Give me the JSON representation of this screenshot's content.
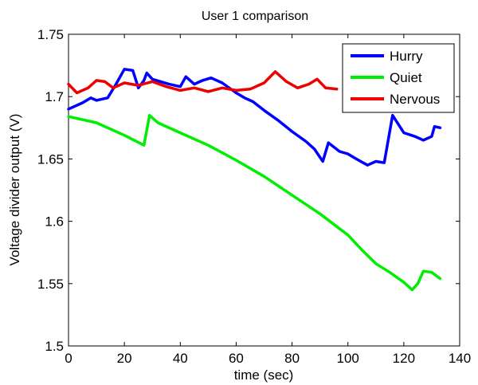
{
  "chart_data": {
    "type": "line",
    "title": "User 1 comparison",
    "xlabel": "time (sec)",
    "ylabel": "Voltage divider output (V)",
    "xlim": [
      0,
      140
    ],
    "ylim": [
      1.5,
      1.75
    ],
    "xticks": [
      0,
      20,
      40,
      60,
      80,
      100,
      120,
      140
    ],
    "yticks": [
      1.5,
      1.55,
      1.6,
      1.65,
      1.7,
      1.75
    ],
    "xtick_labels": [
      "0",
      "20",
      "40",
      "60",
      "80",
      "100",
      "120",
      "140"
    ],
    "ytick_labels": [
      "1.5",
      "1.55",
      "1.6",
      "1.65",
      "1.7",
      "1.75"
    ],
    "grid": false,
    "legend_position": "top-right",
    "series": [
      {
        "name": "Hurry",
        "color": "#0000ff",
        "points": [
          [
            0,
            1.69
          ],
          [
            5,
            1.695
          ],
          [
            8,
            1.699
          ],
          [
            10,
            1.697
          ],
          [
            14,
            1.699
          ],
          [
            17,
            1.71
          ],
          [
            20,
            1.722
          ],
          [
            23,
            1.721
          ],
          [
            25,
            1.707
          ],
          [
            27,
            1.713
          ],
          [
            28,
            1.719
          ],
          [
            30,
            1.714
          ],
          [
            33,
            1.712
          ],
          [
            36,
            1.71
          ],
          [
            40,
            1.708
          ],
          [
            42,
            1.716
          ],
          [
            45,
            1.71
          ],
          [
            48,
            1.713
          ],
          [
            51,
            1.715
          ],
          [
            55,
            1.711
          ],
          [
            60,
            1.703
          ],
          [
            63,
            1.699
          ],
          [
            66,
            1.696
          ],
          [
            70,
            1.689
          ],
          [
            75,
            1.681
          ],
          [
            80,
            1.672
          ],
          [
            85,
            1.664
          ],
          [
            88,
            1.658
          ],
          [
            91,
            1.648
          ],
          [
            93,
            1.663
          ],
          [
            97,
            1.656
          ],
          [
            100,
            1.654
          ],
          [
            103,
            1.65
          ],
          [
            107,
            1.645
          ],
          [
            110,
            1.648
          ],
          [
            113,
            1.647
          ],
          [
            116,
            1.685
          ],
          [
            118,
            1.678
          ],
          [
            120,
            1.671
          ],
          [
            124,
            1.668
          ],
          [
            127,
            1.665
          ],
          [
            130,
            1.668
          ],
          [
            131,
            1.676
          ],
          [
            133,
            1.675
          ]
        ]
      },
      {
        "name": "Quiet",
        "color": "#00ee00",
        "points": [
          [
            0,
            1.684
          ],
          [
            10,
            1.679
          ],
          [
            20,
            1.669
          ],
          [
            27,
            1.661
          ],
          [
            29,
            1.685
          ],
          [
            32,
            1.679
          ],
          [
            40,
            1.671
          ],
          [
            50,
            1.661
          ],
          [
            60,
            1.649
          ],
          [
            70,
            1.636
          ],
          [
            80,
            1.621
          ],
          [
            90,
            1.606
          ],
          [
            100,
            1.589
          ],
          [
            105,
            1.577
          ],
          [
            110,
            1.566
          ],
          [
            115,
            1.559
          ],
          [
            120,
            1.551
          ],
          [
            123,
            1.545
          ],
          [
            125,
            1.55
          ],
          [
            127,
            1.56
          ],
          [
            130,
            1.559
          ],
          [
            133,
            1.554
          ]
        ]
      },
      {
        "name": "Nervous",
        "color": "#ee0000",
        "points": [
          [
            0,
            1.71
          ],
          [
            3,
            1.703
          ],
          [
            7,
            1.707
          ],
          [
            10,
            1.713
          ],
          [
            13,
            1.712
          ],
          [
            16,
            1.707
          ],
          [
            20,
            1.711
          ],
          [
            25,
            1.709
          ],
          [
            30,
            1.712
          ],
          [
            35,
            1.708
          ],
          [
            40,
            1.705
          ],
          [
            45,
            1.707
          ],
          [
            50,
            1.704
          ],
          [
            55,
            1.707
          ],
          [
            60,
            1.705
          ],
          [
            65,
            1.706
          ],
          [
            70,
            1.711
          ],
          [
            74,
            1.72
          ],
          [
            78,
            1.712
          ],
          [
            82,
            1.707
          ],
          [
            86,
            1.71
          ],
          [
            89,
            1.714
          ],
          [
            92,
            1.707
          ],
          [
            96,
            1.706
          ]
        ]
      }
    ]
  }
}
